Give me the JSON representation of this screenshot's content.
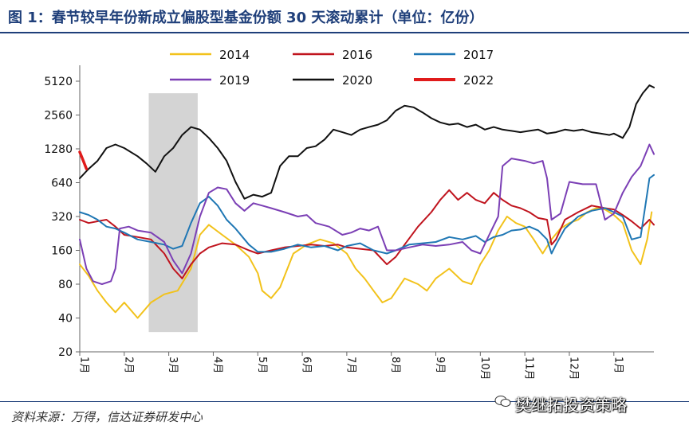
{
  "title": "图 1：春节较早年份新成立偏股型基金份额 30 天滚动累计（单位：亿份）",
  "source": "资料来源：万得，信达证券研发中心",
  "watermark": "樊继拓投资策略",
  "chart_data": {
    "type": "line",
    "y_scale": "log2",
    "ylim": [
      20,
      5120
    ],
    "y_ticks": [
      20,
      40,
      80,
      160,
      320,
      640,
      1280,
      2560,
      5120
    ],
    "x_ticks": [
      "1月",
      "2月",
      "3月",
      "4月",
      "5月",
      "6月",
      "7月",
      "8月",
      "9月",
      "10月",
      "11月",
      "12月",
      "1月"
    ],
    "xlim": [
      0,
      12.9
    ],
    "legend_position": "top",
    "shaded_region": {
      "x_start": 1.55,
      "x_end": 2.65,
      "color": "#d4d4d4"
    },
    "series": [
      {
        "name": "2014",
        "color": "#f2c21b",
        "points": [
          [
            0,
            120
          ],
          [
            0.2,
            95
          ],
          [
            0.4,
            70
          ],
          [
            0.6,
            55
          ],
          [
            0.8,
            45
          ],
          [
            1.0,
            55
          ],
          [
            1.3,
            40
          ],
          [
            1.6,
            55
          ],
          [
            1.9,
            65
          ],
          [
            2.2,
            70
          ],
          [
            2.5,
            110
          ],
          [
            2.7,
            220
          ],
          [
            2.9,
            270
          ],
          [
            3.2,
            220
          ],
          [
            3.5,
            180
          ],
          [
            3.8,
            140
          ],
          [
            4.0,
            100
          ],
          [
            4.1,
            70
          ],
          [
            4.3,
            60
          ],
          [
            4.5,
            75
          ],
          [
            4.8,
            150
          ],
          [
            5.1,
            180
          ],
          [
            5.4,
            200
          ],
          [
            5.7,
            185
          ],
          [
            6.0,
            150
          ],
          [
            6.2,
            110
          ],
          [
            6.4,
            90
          ],
          [
            6.6,
            70
          ],
          [
            6.8,
            55
          ],
          [
            7.0,
            60
          ],
          [
            7.3,
            90
          ],
          [
            7.6,
            80
          ],
          [
            7.8,
            70
          ],
          [
            8.0,
            90
          ],
          [
            8.3,
            110
          ],
          [
            8.6,
            85
          ],
          [
            8.8,
            80
          ],
          [
            9.0,
            120
          ],
          [
            9.2,
            160
          ],
          [
            9.4,
            240
          ],
          [
            9.6,
            320
          ],
          [
            9.8,
            280
          ],
          [
            10.0,
            260
          ],
          [
            10.2,
            200
          ],
          [
            10.4,
            150
          ],
          [
            10.6,
            200
          ],
          [
            10.8,
            250
          ],
          [
            11.0,
            280
          ],
          [
            11.2,
            300
          ],
          [
            11.4,
            350
          ],
          [
            11.6,
            380
          ],
          [
            11.8,
            370
          ],
          [
            12.0,
            330
          ],
          [
            12.2,
            280
          ],
          [
            12.4,
            160
          ],
          [
            12.6,
            120
          ],
          [
            12.75,
            200
          ],
          [
            12.85,
            350
          ]
        ]
      },
      {
        "name": "2016",
        "color": "#c0141e",
        "points": [
          [
            0,
            300
          ],
          [
            0.2,
            280
          ],
          [
            0.4,
            290
          ],
          [
            0.6,
            300
          ],
          [
            0.8,
            260
          ],
          [
            1.0,
            220
          ],
          [
            1.3,
            210
          ],
          [
            1.6,
            200
          ],
          [
            1.9,
            150
          ],
          [
            2.1,
            110
          ],
          [
            2.3,
            90
          ],
          [
            2.5,
            120
          ],
          [
            2.7,
            150
          ],
          [
            2.9,
            170
          ],
          [
            3.2,
            185
          ],
          [
            3.5,
            180
          ],
          [
            3.8,
            160
          ],
          [
            4.0,
            150
          ],
          [
            4.3,
            160
          ],
          [
            4.6,
            170
          ],
          [
            4.9,
            175
          ],
          [
            5.2,
            180
          ],
          [
            5.5,
            175
          ],
          [
            5.8,
            180
          ],
          [
            6.0,
            170
          ],
          [
            6.3,
            165
          ],
          [
            6.6,
            160
          ],
          [
            6.9,
            120
          ],
          [
            7.1,
            140
          ],
          [
            7.3,
            180
          ],
          [
            7.6,
            260
          ],
          [
            7.9,
            350
          ],
          [
            8.1,
            450
          ],
          [
            8.3,
            550
          ],
          [
            8.5,
            450
          ],
          [
            8.7,
            520
          ],
          [
            8.9,
            450
          ],
          [
            9.1,
            420
          ],
          [
            9.3,
            520
          ],
          [
            9.5,
            450
          ],
          [
            9.7,
            400
          ],
          [
            9.9,
            380
          ],
          [
            10.1,
            350
          ],
          [
            10.3,
            310
          ],
          [
            10.5,
            300
          ],
          [
            10.6,
            180
          ],
          [
            10.7,
            200
          ],
          [
            10.9,
            300
          ],
          [
            11.2,
            350
          ],
          [
            11.5,
            400
          ],
          [
            11.8,
            380
          ],
          [
            12.0,
            370
          ],
          [
            12.2,
            330
          ],
          [
            12.4,
            290
          ],
          [
            12.6,
            250
          ],
          [
            12.8,
            300
          ],
          [
            12.9,
            270
          ]
        ]
      },
      {
        "name": "2017",
        "color": "#1f77b4",
        "points": [
          [
            0,
            350
          ],
          [
            0.2,
            330
          ],
          [
            0.4,
            300
          ],
          [
            0.6,
            260
          ],
          [
            0.8,
            250
          ],
          [
            1.0,
            230
          ],
          [
            1.3,
            200
          ],
          [
            1.6,
            190
          ],
          [
            1.9,
            180
          ],
          [
            2.1,
            165
          ],
          [
            2.3,
            175
          ],
          [
            2.5,
            280
          ],
          [
            2.7,
            420
          ],
          [
            2.9,
            480
          ],
          [
            3.1,
            400
          ],
          [
            3.3,
            300
          ],
          [
            3.5,
            250
          ],
          [
            3.8,
            180
          ],
          [
            4.0,
            155
          ],
          [
            4.3,
            155
          ],
          [
            4.6,
            165
          ],
          [
            4.9,
            180
          ],
          [
            5.2,
            170
          ],
          [
            5.5,
            175
          ],
          [
            5.8,
            160
          ],
          [
            6.0,
            175
          ],
          [
            6.3,
            185
          ],
          [
            6.6,
            160
          ],
          [
            6.9,
            150
          ],
          [
            7.1,
            160
          ],
          [
            7.4,
            180
          ],
          [
            7.7,
            185
          ],
          [
            8.0,
            190
          ],
          [
            8.3,
            210
          ],
          [
            8.6,
            200
          ],
          [
            8.9,
            215
          ],
          [
            9.1,
            190
          ],
          [
            9.3,
            210
          ],
          [
            9.5,
            220
          ],
          [
            9.7,
            240
          ],
          [
            9.9,
            245
          ],
          [
            10.1,
            260
          ],
          [
            10.3,
            240
          ],
          [
            10.5,
            200
          ],
          [
            10.6,
            150
          ],
          [
            10.7,
            180
          ],
          [
            10.9,
            250
          ],
          [
            11.2,
            320
          ],
          [
            11.5,
            360
          ],
          [
            11.8,
            380
          ],
          [
            12.0,
            350
          ],
          [
            12.2,
            320
          ],
          [
            12.4,
            200
          ],
          [
            12.6,
            210
          ],
          [
            12.7,
            380
          ],
          [
            12.8,
            700
          ],
          [
            12.9,
            750
          ]
        ]
      },
      {
        "name": "2019",
        "color": "#7b3fb5",
        "points": [
          [
            0,
            200
          ],
          [
            0.15,
            110
          ],
          [
            0.3,
            85
          ],
          [
            0.5,
            80
          ],
          [
            0.7,
            85
          ],
          [
            0.8,
            110
          ],
          [
            0.9,
            250
          ],
          [
            1.1,
            260
          ],
          [
            1.3,
            240
          ],
          [
            1.6,
            230
          ],
          [
            1.9,
            190
          ],
          [
            2.1,
            130
          ],
          [
            2.3,
            100
          ],
          [
            2.5,
            150
          ],
          [
            2.7,
            320
          ],
          [
            2.9,
            520
          ],
          [
            3.1,
            580
          ],
          [
            3.3,
            560
          ],
          [
            3.5,
            420
          ],
          [
            3.7,
            360
          ],
          [
            3.9,
            420
          ],
          [
            4.1,
            400
          ],
          [
            4.3,
            380
          ],
          [
            4.6,
            350
          ],
          [
            4.9,
            320
          ],
          [
            5.1,
            330
          ],
          [
            5.3,
            280
          ],
          [
            5.6,
            260
          ],
          [
            5.9,
            220
          ],
          [
            6.1,
            230
          ],
          [
            6.3,
            250
          ],
          [
            6.5,
            240
          ],
          [
            6.7,
            260
          ],
          [
            6.9,
            160
          ],
          [
            7.1,
            160
          ],
          [
            7.4,
            170
          ],
          [
            7.7,
            180
          ],
          [
            8.0,
            175
          ],
          [
            8.3,
            180
          ],
          [
            8.6,
            190
          ],
          [
            8.8,
            160
          ],
          [
            9.0,
            150
          ],
          [
            9.2,
            220
          ],
          [
            9.4,
            320
          ],
          [
            9.5,
            900
          ],
          [
            9.7,
            1050
          ],
          [
            10.0,
            1000
          ],
          [
            10.2,
            950
          ],
          [
            10.4,
            1000
          ],
          [
            10.5,
            700
          ],
          [
            10.6,
            300
          ],
          [
            10.8,
            340
          ],
          [
            11.0,
            650
          ],
          [
            11.3,
            620
          ],
          [
            11.6,
            620
          ],
          [
            11.8,
            300
          ],
          [
            12.0,
            340
          ],
          [
            12.2,
            520
          ],
          [
            12.4,
            720
          ],
          [
            12.6,
            900
          ],
          [
            12.8,
            1400
          ],
          [
            12.9,
            1150
          ]
        ]
      },
      {
        "name": "2020",
        "color": "#111111",
        "points": [
          [
            0,
            700
          ],
          [
            0.2,
            850
          ],
          [
            0.4,
            1000
          ],
          [
            0.6,
            1300
          ],
          [
            0.8,
            1400
          ],
          [
            1.0,
            1300
          ],
          [
            1.3,
            1100
          ],
          [
            1.5,
            950
          ],
          [
            1.7,
            800
          ],
          [
            1.9,
            1100
          ],
          [
            2.1,
            1300
          ],
          [
            2.3,
            1700
          ],
          [
            2.5,
            2000
          ],
          [
            2.7,
            1900
          ],
          [
            2.9,
            1600
          ],
          [
            3.1,
            1300
          ],
          [
            3.3,
            1000
          ],
          [
            3.5,
            650
          ],
          [
            3.7,
            460
          ],
          [
            3.9,
            500
          ],
          [
            4.1,
            480
          ],
          [
            4.3,
            520
          ],
          [
            4.5,
            900
          ],
          [
            4.7,
            1100
          ],
          [
            4.9,
            1100
          ],
          [
            5.1,
            1300
          ],
          [
            5.3,
            1350
          ],
          [
            5.5,
            1550
          ],
          [
            5.7,
            1900
          ],
          [
            5.9,
            1800
          ],
          [
            6.1,
            1700
          ],
          [
            6.3,
            1900
          ],
          [
            6.5,
            2000
          ],
          [
            6.7,
            2100
          ],
          [
            6.9,
            2300
          ],
          [
            7.1,
            2800
          ],
          [
            7.3,
            3100
          ],
          [
            7.5,
            3000
          ],
          [
            7.7,
            2700
          ],
          [
            7.9,
            2400
          ],
          [
            8.1,
            2200
          ],
          [
            8.3,
            2100
          ],
          [
            8.5,
            2150
          ],
          [
            8.7,
            2000
          ],
          [
            8.9,
            2100
          ],
          [
            9.1,
            1900
          ],
          [
            9.3,
            2000
          ],
          [
            9.5,
            1900
          ],
          [
            9.7,
            1850
          ],
          [
            9.9,
            1800
          ],
          [
            10.1,
            1850
          ],
          [
            10.3,
            1900
          ],
          [
            10.5,
            1750
          ],
          [
            10.7,
            1800
          ],
          [
            10.9,
            1900
          ],
          [
            11.1,
            1850
          ],
          [
            11.3,
            1900
          ],
          [
            11.5,
            1800
          ],
          [
            11.7,
            1750
          ],
          [
            11.9,
            1700
          ],
          [
            12.0,
            1750
          ],
          [
            12.2,
            1600
          ],
          [
            12.35,
            2000
          ],
          [
            12.5,
            3200
          ],
          [
            12.65,
            4000
          ],
          [
            12.8,
            4700
          ],
          [
            12.9,
            4500
          ]
        ]
      },
      {
        "name": "2022",
        "color": "#e01b1b",
        "points": [
          [
            0,
            1200
          ],
          [
            0.08,
            1000
          ],
          [
            0.15,
            850
          ]
        ]
      }
    ]
  }
}
